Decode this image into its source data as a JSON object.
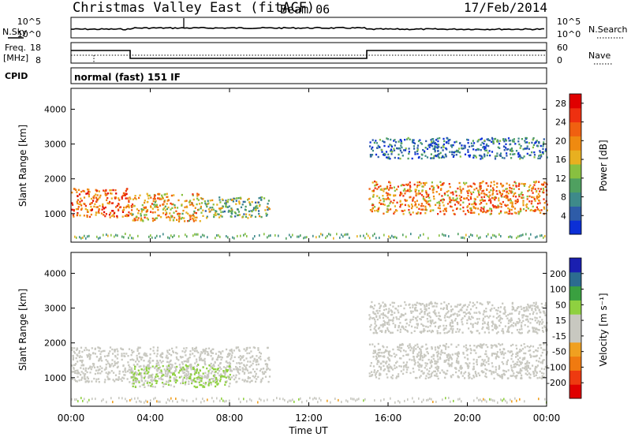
{
  "header": {
    "station": "Christmas Valley East (fitACF)",
    "beam": "Beam 06",
    "date": "17/Feb/2014"
  },
  "mini_panels": {
    "nsky_label": "N.Sky",
    "nsearch_label": "N.Search",
    "noise_ticks_left": [
      "10^5",
      "10^0"
    ],
    "noise_ticks_right": [
      "10^5",
      "10^0"
    ],
    "freq_label_1": "Freq.",
    "freq_label_2": "[MHz]",
    "freq_ticks_left": [
      "18",
      "8"
    ],
    "freq_ticks_right": [
      "60",
      "0"
    ],
    "nave_label": "Nave",
    "cpid_label": "CPID",
    "cpid_value": "normal (fast) 151 IF"
  },
  "colors": {
    "power": [
      "#0b2fd6",
      "#2e5ca8",
      "#3e8a8a",
      "#4fa060",
      "#88c040",
      "#e8b020",
      "#ef8a10",
      "#f06010",
      "#ee3010",
      "#e00000"
    ],
    "velocity": [
      "#e00000",
      "#ee3a10",
      "#f07a10",
      "#f0a020",
      "#c8c8c0",
      "#c8c8c0",
      "#8fd040",
      "#3aa040",
      "#2c6c90",
      "#1a1fb0"
    ]
  },
  "chart_data": [
    {
      "type": "heatmap",
      "title": "",
      "xlabel": "Time UT",
      "ylabel": "Slant Range [km]",
      "x_ticks": [
        "00:00",
        "04:00",
        "08:00",
        "12:00",
        "16:00",
        "20:00",
        "00:00"
      ],
      "y_ticks": [
        "1000",
        "2000",
        "3000",
        "4000"
      ],
      "xlim_hours": [
        0,
        24
      ],
      "ylim_km": [
        180,
        4600
      ],
      "colorbar_label": "Power [dB]",
      "colorbar_ticks": [
        "4",
        "8",
        "12",
        "16",
        "20",
        "24",
        "28"
      ],
      "colorbar_range": [
        0,
        30
      ],
      "scatter_regions": [
        {
          "t": [
            0.0,
            3.0
          ],
          "range_km": [
            900,
            1750
          ],
          "value": 22
        },
        {
          "t": [
            3.0,
            6.5
          ],
          "range_km": [
            800,
            1600
          ],
          "value": 18
        },
        {
          "t": [
            6.5,
            10.0
          ],
          "range_km": [
            900,
            1500
          ],
          "value": 12
        },
        {
          "t": [
            15.0,
            24.0
          ],
          "range_km": [
            1000,
            1950
          ],
          "value": 20
        },
        {
          "t": [
            15.0,
            24.0
          ],
          "range_km": [
            2600,
            3200
          ],
          "value": 6
        }
      ]
    },
    {
      "type": "heatmap",
      "title": "",
      "xlabel": "Time UT",
      "ylabel": "Slant Range [km]",
      "x_ticks": [
        "00:00",
        "04:00",
        "08:00",
        "12:00",
        "16:00",
        "20:00",
        "00:00"
      ],
      "y_ticks": [
        "1000",
        "2000",
        "3000",
        "4000"
      ],
      "xlim_hours": [
        0,
        24
      ],
      "ylim_km": [
        180,
        4600
      ],
      "colorbar_label": "Velocity [m s⁻¹]",
      "colorbar_ticks": [
        "200",
        "100",
        "50",
        "15",
        "-15",
        "-50",
        "-100",
        "-200"
      ],
      "colorbar_range": [
        -250,
        250
      ],
      "scatter_regions": [
        {
          "t": [
            0.0,
            10.0
          ],
          "range_km": [
            900,
            1900
          ],
          "value": 0
        },
        {
          "t": [
            3.0,
            8.0
          ],
          "range_km": [
            750,
            1400
          ],
          "value": 60
        },
        {
          "t": [
            15.0,
            24.0
          ],
          "range_km": [
            1000,
            2000
          ],
          "value": 0
        },
        {
          "t": [
            15.0,
            24.0
          ],
          "range_km": [
            2300,
            3200
          ],
          "value": 0
        }
      ]
    }
  ]
}
